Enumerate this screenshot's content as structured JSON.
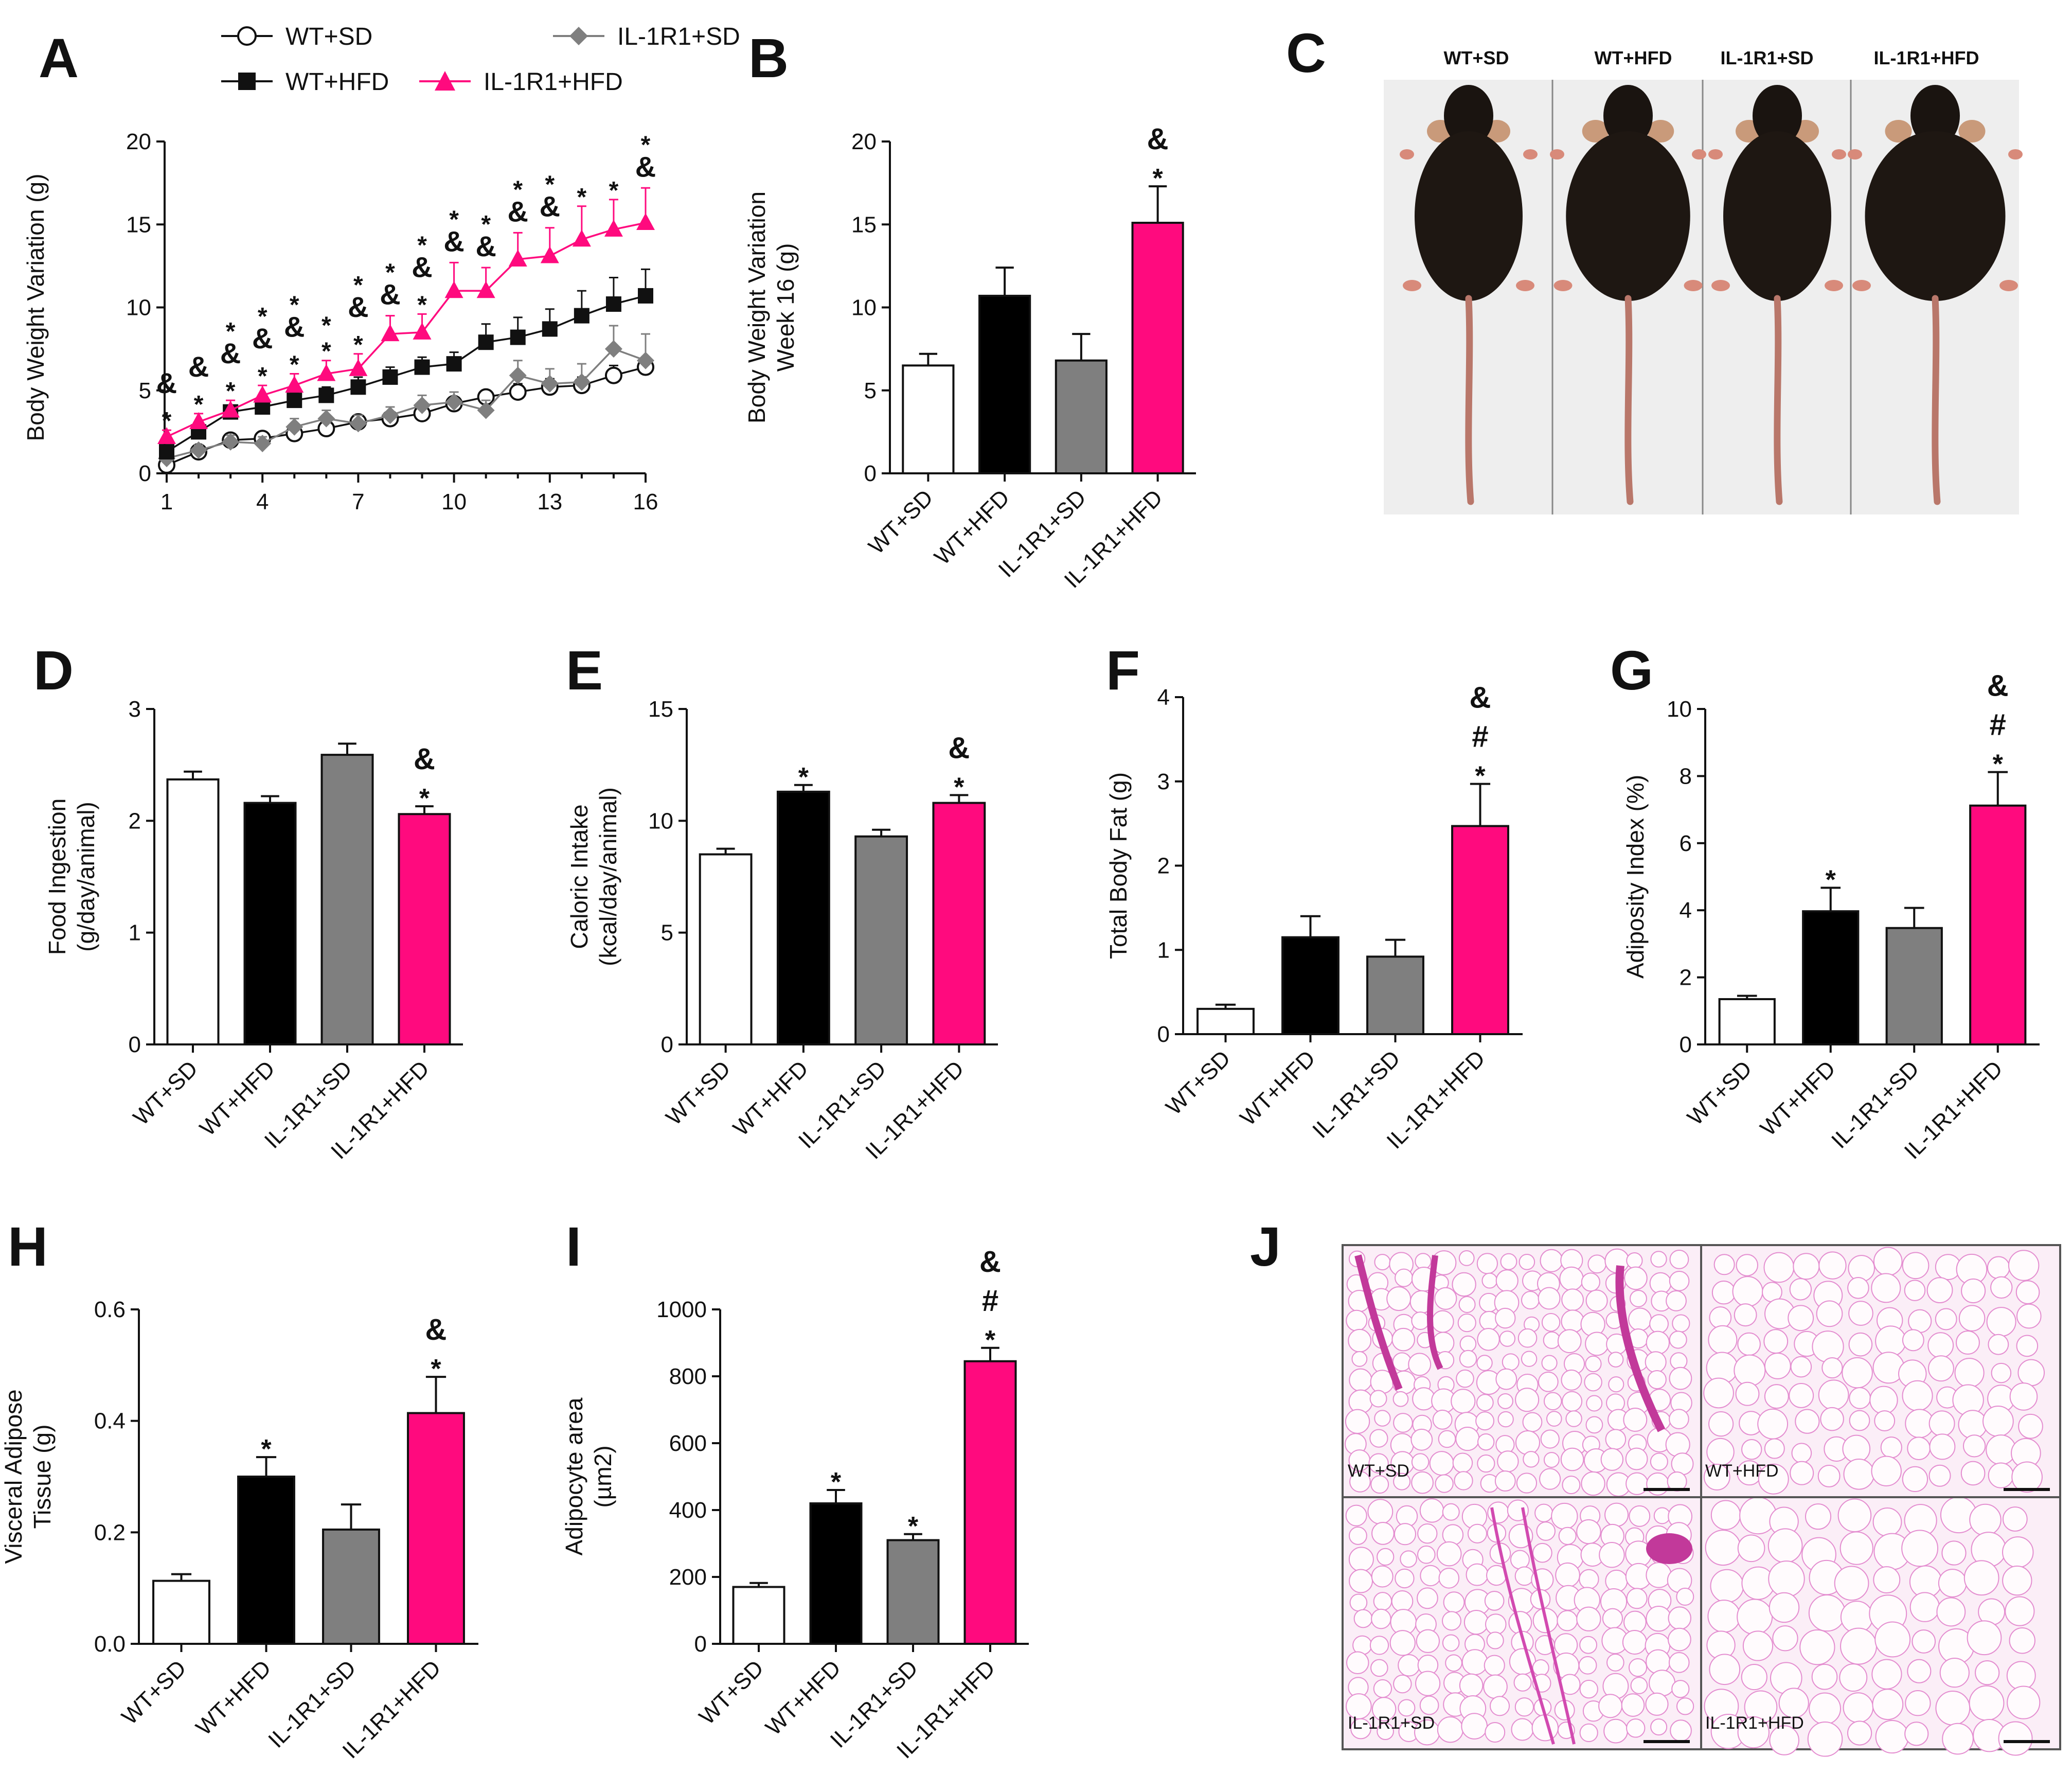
{
  "panel_labels": [
    "A",
    "B",
    "C",
    "D",
    "E",
    "F",
    "G",
    "H",
    "I",
    "J"
  ],
  "groups": [
    "WT+SD",
    "WT+HFD",
    "IL-1R1+SD",
    "IL-1R1+HFD"
  ],
  "colors": {
    "WT+SD": "#ffffff",
    "WT+HFD": "#000000",
    "IL-1R1+SD": "#7f7f7f",
    "IL-1R1+HFD": "#ff0a7e",
    "axis": "#111111"
  },
  "legend": [
    "WT+SD",
    "IL-1R1+SD",
    "WT+HFD",
    "IL-1R1+HFD"
  ],
  "photo_panel": {
    "labels": [
      "WT+SD",
      "WT+HFD",
      "IL-1R1+SD",
      "IL-1R1+HFD"
    ]
  },
  "histology_panel": {
    "labels": [
      "WT+SD",
      "WT+HFD",
      "IL-1R1+SD",
      "IL-1R1+HFD"
    ]
  },
  "chart_data": [
    {
      "id": "A",
      "type": "line",
      "title": "",
      "xlabel": "",
      "ylabel": "Body Weight Variation (g)",
      "xlim": [
        1,
        16
      ],
      "ylim": [
        0,
        20
      ],
      "xticks": [
        1,
        4,
        7,
        10,
        13,
        16
      ],
      "yticks": [
        0,
        5,
        10,
        15,
        20
      ],
      "x": [
        1,
        2,
        3,
        4,
        5,
        6,
        7,
        8,
        9,
        10,
        11,
        12,
        13,
        14,
        15,
        16
      ],
      "series": [
        {
          "name": "WT+SD",
          "marker": "open-circle",
          "values": [
            0.5,
            1.3,
            2.0,
            2.1,
            2.4,
            2.7,
            3.1,
            3.3,
            3.6,
            4.2,
            4.6,
            4.9,
            5.2,
            5.3,
            5.9,
            6.4
          ],
          "err": [
            0.3,
            0.3,
            0.4,
            0.4,
            0.4,
            0.4,
            0.4,
            0.4,
            0.4,
            0.4,
            0.4,
            0.5,
            0.5,
            0.5,
            0.6,
            0.6
          ]
        },
        {
          "name": "IL-1R1+SD",
          "marker": "diamond",
          "values": [
            0.9,
            1.4,
            1.9,
            1.8,
            2.8,
            3.3,
            3.0,
            3.5,
            4.1,
            4.3,
            3.8,
            5.9,
            5.4,
            5.5,
            7.5,
            6.8
          ],
          "err": [
            0.3,
            0.3,
            0.4,
            0.4,
            0.5,
            0.5,
            0.5,
            0.5,
            0.6,
            0.6,
            0.6,
            0.9,
            0.9,
            1.1,
            1.4,
            1.6
          ]
        },
        {
          "name": "WT+HFD",
          "marker": "square",
          "values": [
            1.3,
            2.5,
            3.7,
            4.0,
            4.4,
            4.7,
            5.2,
            5.8,
            6.4,
            6.6,
            7.9,
            8.2,
            8.7,
            9.5,
            10.2,
            10.7
          ],
          "err": [
            0.3,
            0.4,
            0.4,
            0.4,
            0.5,
            0.5,
            0.6,
            0.6,
            0.6,
            0.7,
            1.1,
            1.2,
            1.2,
            1.5,
            1.6,
            1.6
          ]
        },
        {
          "name": "IL-1R1+HFD",
          "marker": "triangle",
          "values": [
            2.2,
            3.1,
            3.8,
            4.7,
            5.3,
            6.0,
            6.3,
            8.4,
            8.5,
            11.0,
            11.0,
            12.9,
            13.1,
            14.1,
            14.7,
            15.1
          ],
          "err": [
            0.4,
            0.5,
            0.6,
            0.6,
            0.7,
            0.8,
            0.9,
            1.1,
            1.1,
            1.7,
            1.4,
            1.6,
            1.7,
            2.0,
            1.8,
            2.1
          ]
        }
      ],
      "annotations": [
        {
          "x": 1,
          "marks": [
            "&",
            "*"
          ]
        },
        {
          "x": 2,
          "marks": [
            "&",
            "*"
          ]
        },
        {
          "x": 3,
          "marks": [
            "*",
            "&",
            "*"
          ]
        },
        {
          "x": 4,
          "marks": [
            "*",
            "&",
            "*"
          ]
        },
        {
          "x": 5,
          "marks": [
            "*",
            "&",
            "*"
          ]
        },
        {
          "x": 6,
          "marks": [
            "*",
            "*"
          ]
        },
        {
          "x": 7,
          "marks": [
            "*",
            "&",
            "*"
          ]
        },
        {
          "x": 8,
          "marks": [
            "*",
            "&"
          ]
        },
        {
          "x": 9,
          "marks": [
            "*",
            "&",
            "*"
          ]
        },
        {
          "x": 10,
          "marks": [
            "*",
            "&"
          ]
        },
        {
          "x": 11,
          "marks": [
            "*",
            "&"
          ]
        },
        {
          "x": 12,
          "marks": [
            "*",
            "&"
          ]
        },
        {
          "x": 13,
          "marks": [
            "*",
            "&"
          ]
        },
        {
          "x": 14,
          "marks": [
            "*"
          ]
        },
        {
          "x": 15,
          "marks": [
            "*"
          ]
        },
        {
          "x": 16,
          "marks": [
            "*",
            "&"
          ]
        }
      ]
    },
    {
      "id": "B",
      "type": "bar",
      "title": "",
      "ylabel": "Body Weight Variation Week 16 (g)",
      "ylim": [
        0,
        20
      ],
      "yticks": [
        0,
        5,
        10,
        15,
        20
      ],
      "categories": [
        "WT+SD",
        "WT+HFD",
        "IL-1R1+SD",
        "IL-1R1+HFD"
      ],
      "values": [
        6.5,
        10.7,
        6.8,
        15.1
      ],
      "err": [
        0.7,
        1.7,
        1.6,
        2.2
      ],
      "marks": [
        [],
        [],
        [],
        [
          "&",
          "*"
        ]
      ]
    },
    {
      "id": "D",
      "type": "bar",
      "title": "",
      "ylabel": "Food Ingestion (g/day/animal)",
      "ylim": [
        0,
        3
      ],
      "yticks": [
        0,
        1,
        2,
        3
      ],
      "categories": [
        "WT+SD",
        "WT+HFD",
        "IL-1R1+SD",
        "IL-1R1+HFD"
      ],
      "values": [
        2.37,
        2.16,
        2.59,
        2.06
      ],
      "err": [
        0.07,
        0.06,
        0.1,
        0.07
      ],
      "marks": [
        [],
        [],
        [],
        [
          "&",
          "*"
        ]
      ]
    },
    {
      "id": "E",
      "type": "bar",
      "title": "",
      "ylabel": "Caloric Intake (kcal/day/animal)",
      "ylim": [
        0,
        15
      ],
      "yticks": [
        0,
        5,
        10,
        15
      ],
      "categories": [
        "WT+SD",
        "WT+HFD",
        "IL-1R1+SD",
        "IL-1R1+HFD"
      ],
      "values": [
        8.5,
        11.3,
        9.3,
        10.8
      ],
      "err": [
        0.25,
        0.3,
        0.3,
        0.35
      ],
      "marks": [
        [],
        [
          "*"
        ],
        [],
        [
          "&",
          "*"
        ]
      ]
    },
    {
      "id": "F",
      "type": "bar",
      "title": "",
      "ylabel": "Total Body Fat (g)",
      "ylim": [
        0,
        4
      ],
      "yticks": [
        0,
        1,
        2,
        3,
        4
      ],
      "categories": [
        "WT+SD",
        "WT+HFD",
        "IL-1R1+SD",
        "IL-1R1+HFD"
      ],
      "values": [
        0.3,
        1.15,
        0.92,
        2.47
      ],
      "err": [
        0.05,
        0.25,
        0.2,
        0.5
      ],
      "marks": [
        [],
        [],
        [],
        [
          "&",
          "#",
          "*"
        ]
      ]
    },
    {
      "id": "G",
      "type": "bar",
      "title": "",
      "ylabel": "Adiposity Index (%)",
      "ylim": [
        0,
        10
      ],
      "yticks": [
        0,
        2,
        4,
        6,
        8,
        10
      ],
      "categories": [
        "WT+SD",
        "WT+HFD",
        "IL-1R1+SD",
        "IL-1R1+HFD"
      ],
      "values": [
        1.35,
        3.97,
        3.47,
        7.12
      ],
      "err": [
        0.1,
        0.7,
        0.6,
        1.0
      ],
      "marks": [
        [],
        [
          "*"
        ],
        [],
        [
          "&",
          "#",
          "*"
        ]
      ]
    },
    {
      "id": "H",
      "type": "bar",
      "title": "",
      "ylabel": "Visceral Adipose Tissue (g)",
      "ylim": [
        0,
        0.6
      ],
      "yticks": [
        "0.0",
        "0.2",
        "0.4",
        "0.6"
      ],
      "categories": [
        "WT+SD",
        "WT+HFD",
        "IL-1R1+SD",
        "IL-1R1+HFD"
      ],
      "values": [
        0.113,
        0.3,
        0.205,
        0.414
      ],
      "err": [
        0.012,
        0.035,
        0.045,
        0.065
      ],
      "marks": [
        [],
        [
          "*"
        ],
        [],
        [
          "&",
          "*"
        ]
      ]
    },
    {
      "id": "I",
      "type": "bar",
      "title": "",
      "ylabel": "Adipocyte area (µm2)",
      "ylim": [
        0,
        1000
      ],
      "yticks": [
        0,
        200,
        400,
        600,
        800,
        1000
      ],
      "categories": [
        "WT+SD",
        "WT+HFD",
        "IL-1R1+SD",
        "IL-1R1+HFD"
      ],
      "values": [
        170,
        420,
        310,
        845
      ],
      "err": [
        12,
        40,
        18,
        40
      ],
      "marks": [
        [],
        [
          "*"
        ],
        [
          "*"
        ],
        [
          "&",
          "#",
          "*"
        ]
      ]
    }
  ]
}
